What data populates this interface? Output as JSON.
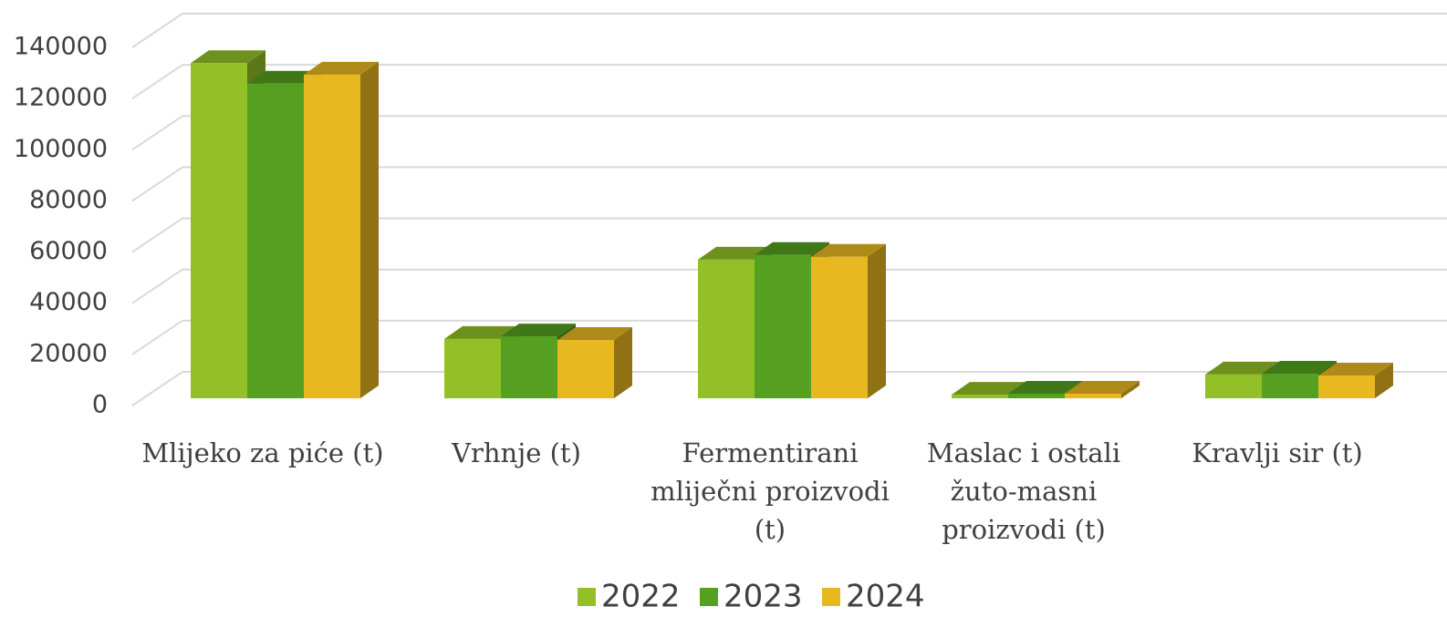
{
  "chart_data": {
    "type": "bar3d",
    "categories": [
      "Mlijeko za piće (t)",
      "Vrhnje (t)",
      "Fermentirani mliječni proizvodi (t)",
      "Maslac i ostali žuto-masni proizvodi (t)",
      "Kravlji sir (t)"
    ],
    "series": [
      {
        "name": "2022",
        "color": "#92c026",
        "values": [
          131000,
          23200,
          54200,
          1400,
          9300
        ]
      },
      {
        "name": "2023",
        "color": "#55a020",
        "values": [
          123000,
          24200,
          56000,
          1800,
          9600
        ]
      },
      {
        "name": "2024",
        "color": "#e8b820",
        "values": [
          126500,
          22800,
          55300,
          1800,
          8900
        ]
      }
    ],
    "ylim": [
      0,
      140000
    ],
    "yticks": [
      0,
      20000,
      40000,
      60000,
      80000,
      100000,
      120000,
      140000
    ],
    "grid": true,
    "legend": "bottom"
  }
}
